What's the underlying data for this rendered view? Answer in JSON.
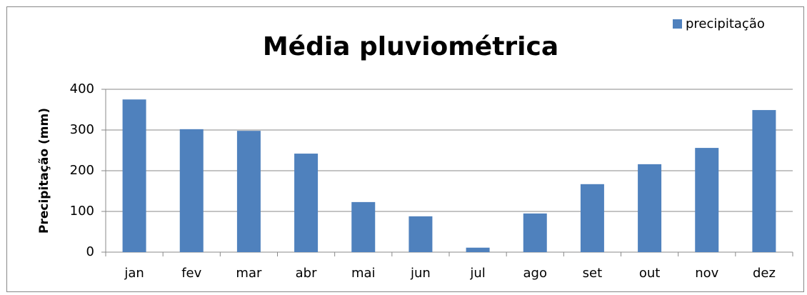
{
  "chart_data": {
    "type": "bar",
    "title": "Média pluviométrica",
    "y_label": "Precipitação (mm)",
    "categories": [
      "jan",
      "fev",
      "mar",
      "abr",
      "mai",
      "jun",
      "jul",
      "ago",
      "set",
      "out",
      "nov",
      "dez"
    ],
    "series": [
      {
        "name": "precipitação",
        "color": "#4f81bd",
        "values": [
          375,
          302,
          298,
          242,
          123,
          88,
          11,
          95,
          167,
          216,
          256,
          349
        ]
      }
    ],
    "ylim": [
      0,
      400
    ],
    "yticks": [
      0,
      100,
      200,
      300,
      400
    ],
    "grid": true,
    "legend": "top-right"
  }
}
